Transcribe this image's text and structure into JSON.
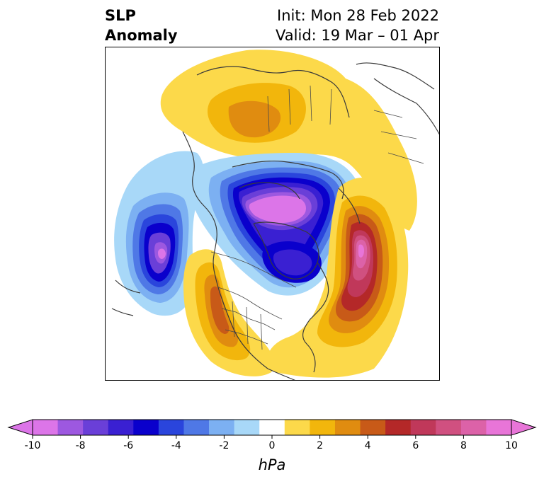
{
  "title": {
    "left_line1": "SLP",
    "left_line2": "Anomaly",
    "right_line1": "Init: Mon 28 Feb 2022",
    "right_line2": "Valid: 19 Mar – 01 Apr"
  },
  "map": {
    "projection": "north-polar-stereographic",
    "features": [
      "coastlines",
      "country-borders",
      "us-state-borders"
    ],
    "anomalies": [
      {
        "name": "arctic-low",
        "sign": "negative",
        "peak_hpa": -10
      },
      {
        "name": "north-pacific-low",
        "sign": "negative",
        "peak_hpa": -9
      },
      {
        "name": "hudson-bay-low",
        "sign": "negative",
        "peak_hpa": -7
      },
      {
        "name": "north-atlantic-high",
        "sign": "positive",
        "peak_hpa": 10
      },
      {
        "name": "western-us-high",
        "sign": "positive",
        "peak_hpa": 5
      },
      {
        "name": "siberia-high",
        "sign": "positive",
        "peak_hpa": 4
      }
    ]
  },
  "colorbar": {
    "unit_label": "hPa",
    "extend": "both",
    "levels": [
      -10,
      -9,
      -8,
      -7,
      -6,
      -5,
      -4,
      -3,
      -2,
      -1,
      1,
      2,
      3,
      4,
      5,
      6,
      7,
      8,
      9,
      10
    ],
    "colors": [
      "#dc75e8",
      "#9d58e0",
      "#6a3fd8",
      "#3a20d2",
      "#0a00cc",
      "#2a45dc",
      "#4f78e6",
      "#7cb0f2",
      "#a8d8f8",
      "#ffffff",
      "#fcd94a",
      "#f2b60c",
      "#e08c10",
      "#c85a18",
      "#b42828",
      "#c0385a",
      "#d05080",
      "#dc62a8",
      "#e875d8"
    ],
    "tick_labels": [
      "-10",
      "-8",
      "-6",
      "-4",
      "-2",
      "0",
      "2",
      "4",
      "6",
      "8",
      "10"
    ],
    "ticks": [
      -10,
      -8,
      -6,
      -4,
      -2,
      0,
      2,
      4,
      6,
      8,
      10
    ]
  }
}
